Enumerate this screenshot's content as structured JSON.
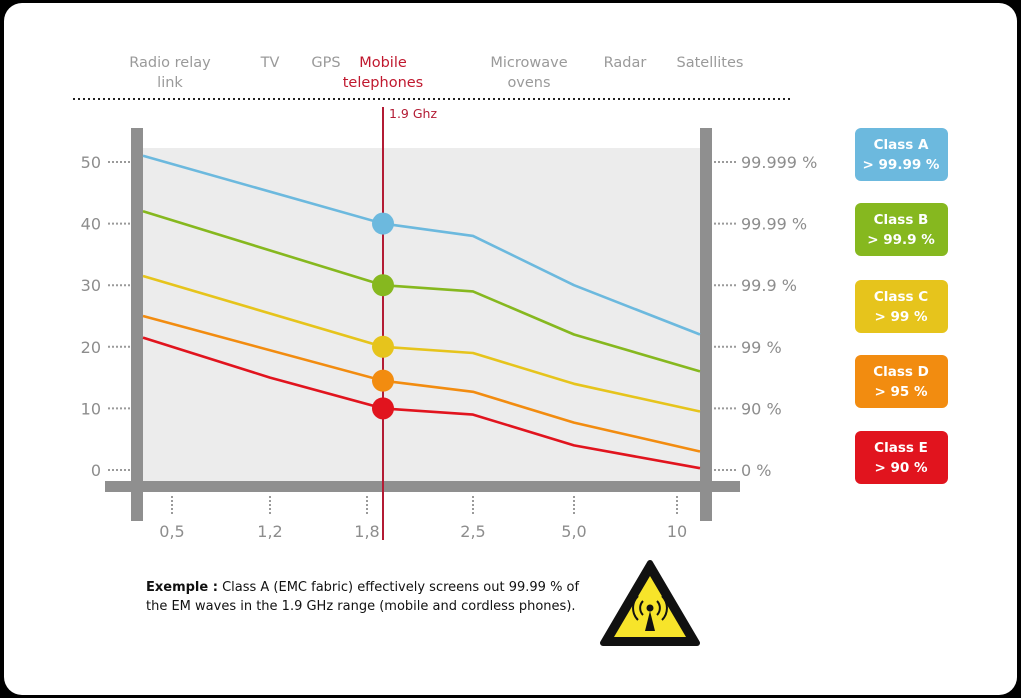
{
  "chart_data": {
    "type": "line",
    "band_categories": [
      {
        "lines": [
          "Radio relay",
          "link"
        ]
      },
      {
        "lines": [
          "TV"
        ]
      },
      {
        "lines": [
          "GPS"
        ]
      },
      {
        "lines": [
          "Mobile",
          "telephones"
        ],
        "highlight": true
      },
      {
        "lines": [
          "Microwave",
          "ovens"
        ]
      },
      {
        "lines": [
          "Radar"
        ]
      },
      {
        "lines": [
          "Satellites"
        ]
      }
    ],
    "x_ticks": [
      "0,5",
      "1,2",
      "1,8",
      "2,5",
      "5,0",
      "10"
    ],
    "y_ticks_left": [
      "0",
      "10",
      "20",
      "30",
      "40",
      "50"
    ],
    "y_ticks_right": [
      "0 %",
      "90 %",
      "99 %",
      "99.9 %",
      "99.99 %",
      "99.999 %"
    ],
    "ylim": [
      0,
      50
    ],
    "marker": {
      "label": "1.9 Ghz",
      "x_value": 1.9
    },
    "series": [
      {
        "name": "Class A",
        "subtitle": "> 99.99 %",
        "color": "#6cb9de",
        "points": [
          [
            0.5,
            51
          ],
          [
            1.9,
            40
          ],
          [
            2.5,
            38
          ],
          [
            5.0,
            30
          ],
          [
            10,
            22
          ]
        ],
        "marker_y": 40
      },
      {
        "name": "Class B",
        "subtitle": "> 99.9 %",
        "color": "#86b81f",
        "points": [
          [
            0.5,
            42
          ],
          [
            1.9,
            30
          ],
          [
            2.5,
            29
          ],
          [
            5.0,
            22
          ],
          [
            10,
            16
          ]
        ],
        "marker_y": 30
      },
      {
        "name": "Class C",
        "subtitle": "> 99 %",
        "color": "#e6c41c",
        "points": [
          [
            0.5,
            31.5
          ],
          [
            1.9,
            20
          ],
          [
            2.5,
            19
          ],
          [
            5.0,
            14
          ],
          [
            10,
            9.5
          ]
        ],
        "marker_y": 20
      },
      {
        "name": "Class D",
        "subtitle": "> 95 %",
        "color": "#f28c10",
        "points": [
          [
            0.5,
            25
          ],
          [
            1.9,
            14.5
          ],
          [
            2.5,
            12.7
          ],
          [
            5.0,
            7.7
          ],
          [
            10,
            3
          ]
        ],
        "marker_y": 14.5
      },
      {
        "name": "Class E",
        "subtitle": "> 90 %",
        "color": "#e1141e",
        "points": [
          [
            0.5,
            21.5
          ],
          [
            1.2,
            15
          ],
          [
            1.9,
            10
          ],
          [
            2.5,
            9
          ],
          [
            5.0,
            4
          ],
          [
            10,
            0.3
          ]
        ],
        "marker_y": 10
      }
    ]
  },
  "example": {
    "label": "Exemple :",
    "line1": " Class A (EMC fabric) effectively screens out 99.99 % of",
    "line2": "the EM waves in the 1.9 GHz range (mobile and cordless phones)."
  },
  "colors": {
    "axis": "#8f8f8f",
    "plot_background": "#ececec",
    "marker_line": "#b31b34",
    "warning_yellow": "#f7e42a"
  },
  "icons": {
    "warning": "radiation-warning-icon"
  }
}
